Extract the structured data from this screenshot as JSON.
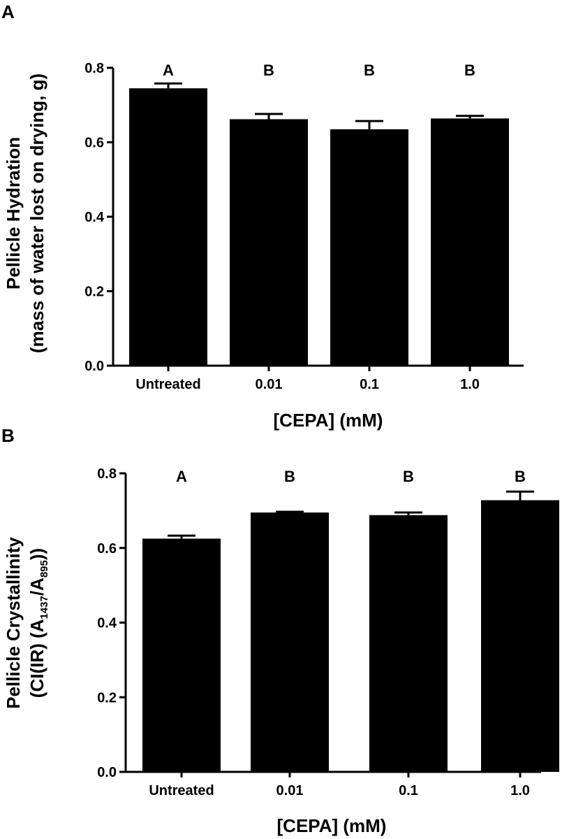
{
  "chart_data": [
    {
      "type": "bar",
      "panel": "A",
      "categories": [
        "Untreated",
        "0.01",
        "0.1",
        "1.0"
      ],
      "values": [
        0.745,
        0.662,
        0.635,
        0.664
      ],
      "errors": [
        0.013,
        0.014,
        0.022,
        0.007
      ],
      "significance": [
        "A",
        "B",
        "B",
        "B"
      ],
      "xlabel": "[CEPA] (mM)",
      "ylabel_line1": "Pellicle Hydration",
      "ylabel_line2": "(mass of water lost on drying, g)",
      "ylim": [
        0,
        0.8
      ],
      "yticks": [
        0.0,
        0.2,
        0.4,
        0.6,
        0.8
      ],
      "ytick_labels": [
        "0.0",
        "0.2",
        "0.4",
        "0.6",
        "0.8"
      ]
    },
    {
      "type": "bar",
      "panel": "B",
      "categories": [
        "Untreated",
        "0.01",
        "0.1",
        "1.0"
      ],
      "values": [
        0.625,
        0.695,
        0.688,
        0.728
      ],
      "errors": [
        0.008,
        0.002,
        0.007,
        0.023
      ],
      "significance": [
        "A",
        "B",
        "B",
        "B"
      ],
      "xlabel": "[CEPA] (mM)",
      "ylabel_line1": "Pellicle Crystallinity",
      "ylabel_line2": "(CI(IR) (A1437/A895))",
      "ylim": [
        0,
        0.8
      ],
      "yticks": [
        0.0,
        0.2,
        0.4,
        0.6,
        0.8
      ],
      "ytick_labels": [
        "0.0",
        "0.2",
        "0.4",
        "0.6",
        "0.8"
      ]
    }
  ]
}
